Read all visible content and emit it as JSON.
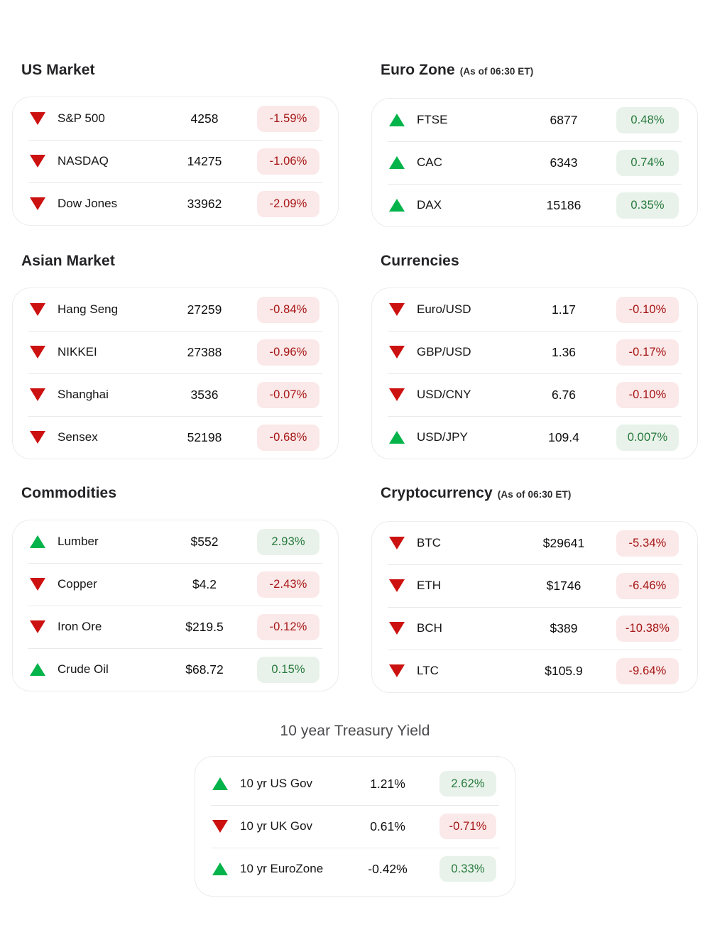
{
  "colors": {
    "up": "#04b44a",
    "down": "#cc1111",
    "up_badge_bg": "#e8f2ea",
    "up_badge_text": "#27793c",
    "down_badge_bg": "#fbe8e8",
    "down_badge_text": "#a61515"
  },
  "icons": {
    "up": "up-triangle-icon",
    "down": "down-triangle-icon"
  },
  "sections": [
    {
      "id": "us-market",
      "title": "US Market",
      "subtitle": "",
      "placement": "grid",
      "rows": [
        {
          "direction": "down",
          "label": "S&P 500",
          "value": "4258",
          "change": "-1.59%"
        },
        {
          "direction": "down",
          "label": "NASDAQ",
          "value": "14275",
          "change": "-1.06%"
        },
        {
          "direction": "down",
          "label": "Dow Jones",
          "value": "33962",
          "change": "-2.09%"
        }
      ]
    },
    {
      "id": "euro-zone",
      "title": "Euro Zone",
      "subtitle": "(As of 06:30 ET)",
      "placement": "grid",
      "rows": [
        {
          "direction": "up",
          "label": "FTSE",
          "value": "6877",
          "change": "0.48%"
        },
        {
          "direction": "up",
          "label": "CAC",
          "value": "6343",
          "change": "0.74%"
        },
        {
          "direction": "up",
          "label": "DAX",
          "value": "15186",
          "change": "0.35%"
        }
      ]
    },
    {
      "id": "asian-market",
      "title": "Asian Market",
      "subtitle": "",
      "placement": "grid",
      "rows": [
        {
          "direction": "down",
          "label": "Hang Seng",
          "value": "27259",
          "change": "-0.84%"
        },
        {
          "direction": "down",
          "label": "NIKKEI",
          "value": "27388",
          "change": "-0.96%"
        },
        {
          "direction": "down",
          "label": "Shanghai",
          "value": "3536",
          "change": "-0.07%"
        },
        {
          "direction": "down",
          "label": "Sensex",
          "value": "52198",
          "change": "-0.68%"
        }
      ]
    },
    {
      "id": "currencies",
      "title": "Currencies",
      "subtitle": "",
      "placement": "grid",
      "rows": [
        {
          "direction": "down",
          "label": "Euro/USD",
          "value": "1.17",
          "change": "-0.10%"
        },
        {
          "direction": "down",
          "label": "GBP/USD",
          "value": "1.36",
          "change": "-0.17%"
        },
        {
          "direction": "down",
          "label": "USD/CNY",
          "value": "6.76",
          "change": "-0.10%"
        },
        {
          "direction": "up",
          "label": "USD/JPY",
          "value": "109.4",
          "change": "0.007%"
        }
      ]
    },
    {
      "id": "commodities",
      "title": "Commodities",
      "subtitle": "",
      "placement": "grid",
      "rows": [
        {
          "direction": "up",
          "label": "Lumber",
          "value": "$552",
          "change": "2.93%"
        },
        {
          "direction": "down",
          "label": "Copper",
          "value": "$4.2",
          "change": "-2.43%"
        },
        {
          "direction": "down",
          "label": "Iron Ore",
          "value": "$219.5",
          "change": "-0.12%"
        },
        {
          "direction": "up",
          "label": "Crude Oil",
          "value": "$68.72",
          "change": "0.15%"
        }
      ]
    },
    {
      "id": "cryptocurrency",
      "title": "Cryptocurrency",
      "subtitle": "(As of 06:30 ET)",
      "placement": "grid",
      "rows": [
        {
          "direction": "down",
          "label": "BTC",
          "value": "$29641",
          "change": "-5.34%"
        },
        {
          "direction": "down",
          "label": "ETH",
          "value": "$1746",
          "change": "-6.46%"
        },
        {
          "direction": "down",
          "label": "BCH",
          "value": "$389",
          "change": "-10.38%"
        },
        {
          "direction": "down",
          "label": "LTC",
          "value": "$105.9",
          "change": "-9.64%"
        }
      ]
    },
    {
      "id": "treasury-yield",
      "title": "10 year Treasury Yield",
      "subtitle": "",
      "placement": "bottom",
      "rows": [
        {
          "direction": "up",
          "label": "10 yr US Gov",
          "value": "1.21%",
          "change": "2.62%"
        },
        {
          "direction": "down",
          "label": "10 yr UK Gov",
          "value": "0.61%",
          "change": "-0.71%"
        },
        {
          "direction": "up",
          "label": "10 yr EuroZone",
          "value": "-0.42%",
          "change": "0.33%"
        }
      ]
    }
  ]
}
